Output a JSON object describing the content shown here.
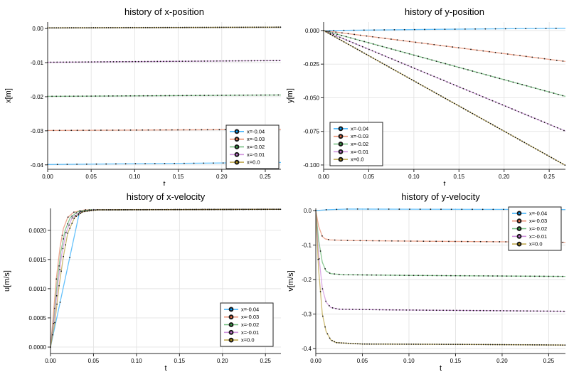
{
  "figure": {
    "background": "#ffffff"
  },
  "style": {
    "grid_color": "#e3e3e3",
    "spine_color": "#2a2a2a",
    "marker_color": "#151515",
    "legend_border": "#222222",
    "legend_background": "#ffffff",
    "line_opacity": 0.6
  },
  "series_labels": [
    "x=-0.04",
    "x=-0.03",
    "x=-0.02",
    "x=-0.01",
    "x=0.0"
  ],
  "palette": [
    "#009af9",
    "#e26e47",
    "#3da44d",
    "#c271d2",
    "#ac8d18"
  ],
  "chart_data": [
    {
      "type": "line",
      "title": "history of x-position",
      "xlabel": "t",
      "ylabel": "x[m]",
      "xlim": [
        0,
        0.268
      ],
      "ylim": [
        -0.0413,
        0.0019
      ],
      "xticks": {
        "values": [
          0,
          0.05,
          0.1,
          0.15,
          0.2,
          0.25
        ],
        "labels": [
          "0.00",
          "0.05",
          "0.10",
          "0.15",
          "0.20",
          "0.25"
        ]
      },
      "yticks": {
        "values": [
          0,
          -0.01,
          -0.02,
          -0.03,
          -0.04
        ],
        "labels": [
          "0.00",
          "-0.01",
          "-0.02",
          "-0.03",
          "-0.04"
        ]
      },
      "grid": true,
      "legend_position": "bottom-right",
      "series": [
        {
          "name": "x=-0.04",
          "color": "#009af9",
          "marker_dt": 0.0112,
          "points": [
            [
              0,
              -0.0399
            ],
            [
              0.268,
              -0.0393
            ]
          ]
        },
        {
          "name": "x=-0.03",
          "color": "#e26e47",
          "marker_dt": 0.0068,
          "points": [
            [
              0,
              -0.0299
            ],
            [
              0.268,
              -0.0296
            ]
          ]
        },
        {
          "name": "x=-0.02",
          "color": "#3da44d",
          "marker_dt": 0.005,
          "points": [
            [
              0,
              -0.0199
            ],
            [
              0.268,
              -0.0195
            ]
          ]
        },
        {
          "name": "x=-0.01",
          "color": "#c271d2",
          "marker_dt": 0.0036,
          "points": [
            [
              0,
              -0.0099
            ],
            [
              0.268,
              -0.0094
            ]
          ]
        },
        {
          "name": "x=0.0",
          "color": "#ac8d18",
          "marker_dt": 0.0025,
          "points": [
            [
              0,
              0.0002
            ],
            [
              0.268,
              0.0004
            ]
          ]
        }
      ]
    },
    {
      "type": "line",
      "title": "history of y-position",
      "xlabel": "t",
      "ylabel": "y[m]",
      "xlim": [
        0,
        0.268
      ],
      "ylim": [
        -0.1032,
        0.0063
      ],
      "xticks": {
        "values": [
          0,
          0.05,
          0.1,
          0.15,
          0.2,
          0.25
        ],
        "labels": [
          "0.00",
          "0.05",
          "0.10",
          "0.15",
          "0.20",
          "0.25"
        ]
      },
      "yticks": {
        "values": [
          0,
          -0.025,
          -0.05,
          -0.075,
          -0.1
        ],
        "labels": [
          "0.000",
          "-0.025",
          "-0.050",
          "-0.075",
          "-0.100"
        ]
      },
      "grid": true,
      "legend_position": "bottom-left",
      "series": [
        {
          "name": "x=-0.04",
          "color": "#009af9",
          "marker_dt": 0.0112,
          "points": [
            [
              0,
              0.0
            ],
            [
              0.13,
              0.0009
            ],
            [
              0.268,
              0.0017
            ]
          ]
        },
        {
          "name": "x=-0.03",
          "color": "#e26e47",
          "marker_dt": 0.0068,
          "points": [
            [
              0,
              0.0
            ],
            [
              0.268,
              -0.023
            ]
          ]
        },
        {
          "name": "x=-0.02",
          "color": "#3da44d",
          "marker_dt": 0.005,
          "points": [
            [
              0,
              0.0
            ],
            [
              0.268,
              -0.049
            ]
          ]
        },
        {
          "name": "x=-0.01",
          "color": "#c271d2",
          "marker_dt": 0.0036,
          "points": [
            [
              0,
              0.0
            ],
            [
              0.268,
              -0.0748
            ]
          ]
        },
        {
          "name": "x=0.0",
          "color": "#ac8d18",
          "marker_dt": 0.0025,
          "points": [
            [
              0,
              0.0
            ],
            [
              0.268,
              -0.1003
            ]
          ]
        }
      ]
    },
    {
      "type": "line",
      "title": "history of x-velocity",
      "xlabel": "t",
      "ylabel": "u[m/s]",
      "xlim": [
        0,
        0.268
      ],
      "ylim": [
        -0.00011,
        0.002375
      ],
      "xticks": {
        "values": [
          0,
          0.05,
          0.1,
          0.15,
          0.2,
          0.25
        ],
        "labels": [
          "0.00",
          "0.05",
          "0.10",
          "0.15",
          "0.20",
          "0.25"
        ]
      },
      "yticks": {
        "values": [
          0,
          0.0005,
          0.001,
          0.0015,
          0.002
        ],
        "labels": [
          "0.0000",
          "0.0005",
          "0.0010",
          "0.0015",
          "0.0020"
        ]
      },
      "grid": true,
      "legend_position": "bottom-right",
      "series": [
        {
          "name": "x=-0.04",
          "color": "#009af9",
          "marker_dt": 0.0112,
          "points": [
            [
              0,
              0.0
            ],
            [
              0.034,
              0.00233
            ],
            [
              0.05,
              0.00235
            ],
            [
              0.268,
              0.00236
            ]
          ]
        },
        {
          "name": "x=-0.03",
          "color": "#e26e47",
          "marker_dt": 0.0068,
          "points": [
            [
              0,
              0.0
            ],
            [
              0.003,
              0.0005
            ],
            [
              0.007,
              0.0012
            ],
            [
              0.011,
              0.0017
            ],
            [
              0.015,
              0.00203
            ],
            [
              0.02,
              0.00222
            ],
            [
              0.027,
              0.00231
            ],
            [
              0.04,
              0.00235
            ],
            [
              0.268,
              0.00236
            ]
          ]
        },
        {
          "name": "x=-0.02",
          "color": "#3da44d",
          "marker_dt": 0.005,
          "points": [
            [
              0,
              0.0
            ],
            [
              0.004,
              0.0005
            ],
            [
              0.008,
              0.00115
            ],
            [
              0.012,
              0.00163
            ],
            [
              0.017,
              0.002
            ],
            [
              0.023,
              0.00222
            ],
            [
              0.032,
              0.00232
            ],
            [
              0.045,
              0.00235
            ],
            [
              0.268,
              0.00236
            ]
          ]
        },
        {
          "name": "x=-0.01",
          "color": "#c271d2",
          "marker_dt": 0.0036,
          "points": [
            [
              0,
              0.0
            ],
            [
              0.004,
              0.00045
            ],
            [
              0.009,
              0.00112
            ],
            [
              0.013,
              0.00158
            ],
            [
              0.018,
              0.00196
            ],
            [
              0.025,
              0.00221
            ],
            [
              0.035,
              0.00231
            ],
            [
              0.05,
              0.00235
            ],
            [
              0.268,
              0.00236
            ]
          ]
        },
        {
          "name": "x=0.0",
          "color": "#ac8d18",
          "marker_dt": 0.0025,
          "points": [
            [
              0,
              0.0
            ],
            [
              0.005,
              0.00042
            ],
            [
              0.01,
              0.00105
            ],
            [
              0.015,
              0.00155
            ],
            [
              0.02,
              0.00195
            ],
            [
              0.028,
              0.00222
            ],
            [
              0.038,
              0.00232
            ],
            [
              0.055,
              0.00235
            ],
            [
              0.268,
              0.00236
            ]
          ]
        }
      ]
    },
    {
      "type": "line",
      "title": "history of y-velocity",
      "xlabel": "t",
      "ylabel": "v[m/s]",
      "xlim": [
        0,
        0.268
      ],
      "ylim": [
        -0.4145,
        0.0063
      ],
      "xticks": {
        "values": [
          0,
          0.05,
          0.1,
          0.15,
          0.2,
          0.25
        ],
        "labels": [
          "0.00",
          "0.05",
          "0.10",
          "0.15",
          "0.20",
          "0.25"
        ]
      },
      "yticks": {
        "values": [
          0,
          -0.1,
          -0.2,
          -0.3,
          -0.4
        ],
        "labels": [
          "0.0",
          "-0.1",
          "-0.2",
          "-0.3",
          "-0.4"
        ]
      },
      "grid": true,
      "legend_position": "top-right",
      "series": [
        {
          "name": "x=-0.04",
          "color": "#009af9",
          "marker_dt": 0.0112,
          "points": [
            [
              0,
              0.0
            ],
            [
              0.012,
              0.0025
            ],
            [
              0.035,
              0.0045
            ],
            [
              0.1,
              0.004
            ],
            [
              0.268,
              0.003
            ]
          ]
        },
        {
          "name": "x=-0.03",
          "color": "#e26e47",
          "marker_dt": 0.0068,
          "points": [
            [
              0,
              0.0
            ],
            [
              0.003,
              -0.045
            ],
            [
              0.007,
              -0.075
            ],
            [
              0.01,
              -0.082
            ],
            [
              0.015,
              -0.085
            ],
            [
              0.04,
              -0.087
            ],
            [
              0.12,
              -0.089
            ],
            [
              0.268,
              -0.092
            ]
          ]
        },
        {
          "name": "x=-0.02",
          "color": "#3da44d",
          "marker_dt": 0.005,
          "points": [
            [
              0,
              0.0
            ],
            [
              0.003,
              -0.085
            ],
            [
              0.007,
              -0.15
            ],
            [
              0.011,
              -0.175
            ],
            [
              0.016,
              -0.183
            ],
            [
              0.03,
              -0.186
            ],
            [
              0.1,
              -0.188
            ],
            [
              0.268,
              -0.191
            ]
          ]
        },
        {
          "name": "x=-0.01",
          "color": "#c271d2",
          "marker_dt": 0.0036,
          "points": [
            [
              0,
              0.0
            ],
            [
              0.003,
              -0.125
            ],
            [
              0.007,
              -0.225
            ],
            [
              0.011,
              -0.265
            ],
            [
              0.016,
              -0.281
            ],
            [
              0.025,
              -0.286
            ],
            [
              0.08,
              -0.288
            ],
            [
              0.268,
              -0.292
            ]
          ]
        },
        {
          "name": "x=0.0",
          "color": "#ac8d18",
          "marker_dt": 0.0025,
          "points": [
            [
              0,
              0.0
            ],
            [
              0.003,
              -0.17
            ],
            [
              0.007,
              -0.3
            ],
            [
              0.011,
              -0.35
            ],
            [
              0.016,
              -0.375
            ],
            [
              0.022,
              -0.383
            ],
            [
              0.05,
              -0.387
            ],
            [
              0.15,
              -0.388
            ],
            [
              0.268,
              -0.39
            ]
          ]
        }
      ]
    }
  ]
}
